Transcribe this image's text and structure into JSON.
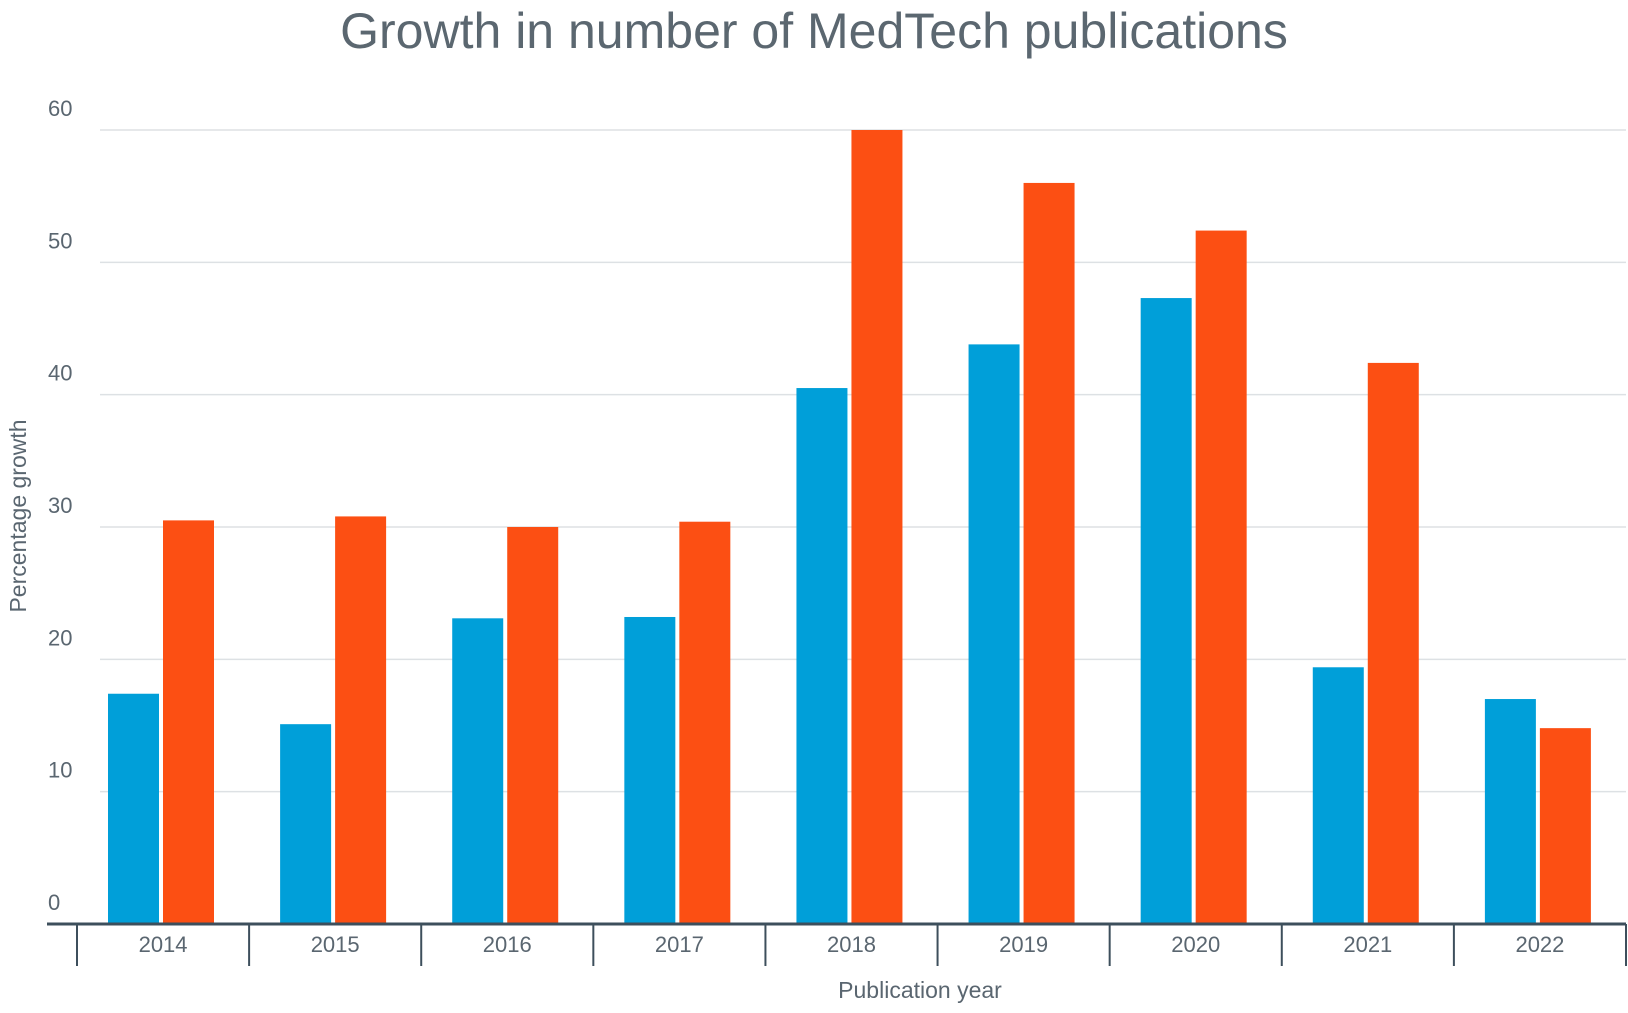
{
  "chart_data": {
    "type": "bar",
    "title": "Growth in number of MedTech publications",
    "x_label": "Publication year",
    "y_label": "Percentage growth",
    "categories": [
      "2014",
      "2015",
      "2016",
      "2017",
      "2018",
      "2019",
      "2020",
      "2021",
      "2022"
    ],
    "series": [
      {
        "color": "#009fd9",
        "values": [
          17.4,
          15.1,
          23.1,
          23.2,
          40.5,
          43.8,
          47.3,
          19.4,
          17.0
        ]
      },
      {
        "color": "#fc4f13",
        "values": [
          30.5,
          30.8,
          30.0,
          30.4,
          60.0,
          56.0,
          52.4,
          42.4,
          14.8
        ]
      }
    ],
    "ylim": [
      0,
      60
    ],
    "yticks": [
      0,
      10,
      20,
      30,
      40,
      50,
      60
    ],
    "grid": true
  }
}
